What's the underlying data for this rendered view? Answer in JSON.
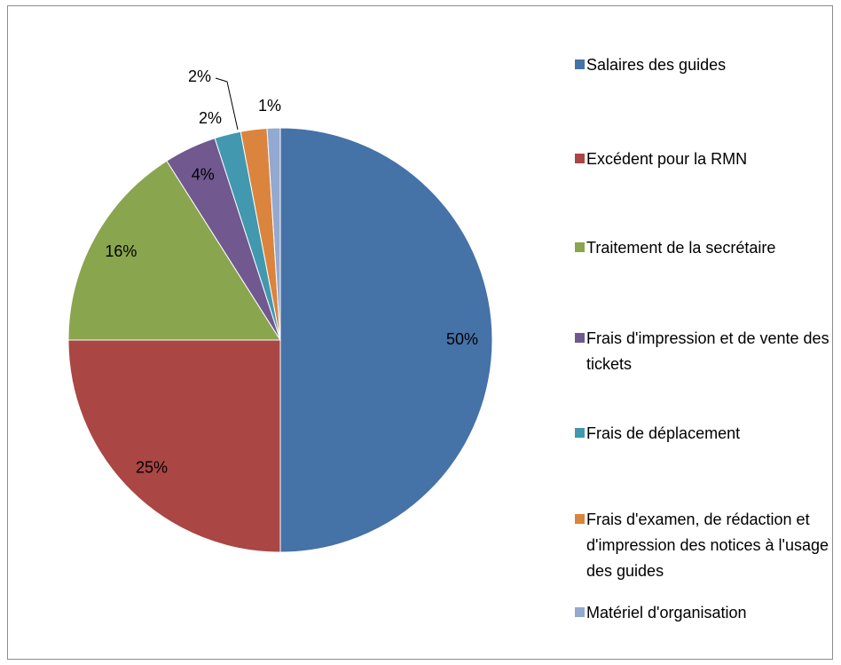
{
  "chart_data": {
    "type": "pie",
    "categories": [
      "Salaires des guides",
      "Excédent pour la RMN",
      "Traitement de la secrétaire",
      "Frais d'impression et de vente des tickets",
      "Frais de déplacement",
      "Frais d'examen, de rédaction et d'impression des notices à l'usage des guides",
      "Matériel d'organisation"
    ],
    "values": [
      50,
      25,
      16,
      4,
      2,
      2,
      1
    ],
    "value_labels": [
      "50%",
      "25%",
      "16%",
      "4%",
      "2%",
      "2%",
      "1%"
    ],
    "colors": [
      "#4572a7",
      "#aa4643",
      "#89a54e",
      "#71588f",
      "#4198af",
      "#db843d",
      "#93a9cf"
    ],
    "legend": "right"
  }
}
